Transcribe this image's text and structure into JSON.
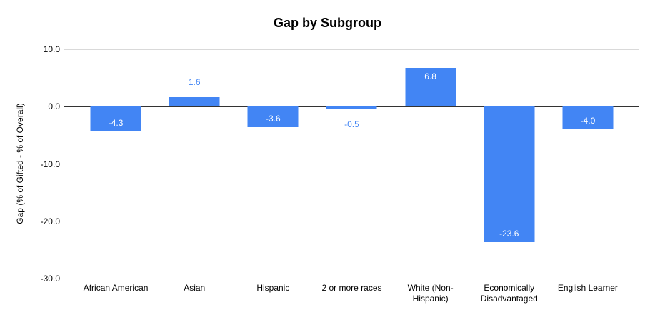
{
  "chart_data": {
    "type": "bar",
    "title": "Gap by Subgroup",
    "xlabel": "",
    "ylabel": "Gap (% of Gifted - % of Overall)",
    "categories": [
      "African American",
      "Asian",
      "Hispanic",
      "2 or more races",
      "White (Non-Hispanic)",
      "Economically Disadvantaged",
      "English Learner"
    ],
    "values": [
      -4.3,
      1.6,
      -3.6,
      -0.5,
      6.8,
      -23.6,
      -4.0
    ],
    "data_labels": [
      "-4.3",
      "1.6",
      "-3.6",
      "-0.5",
      "6.8",
      "-23.6",
      "-4.0"
    ],
    "ylim": [
      -30,
      10
    ],
    "y_ticks": [
      10,
      0,
      -10,
      -20,
      -30
    ],
    "y_tick_labels": [
      "10.0",
      "0.0",
      "-10.0",
      "-20.0",
      "-30.0"
    ],
    "grid": true,
    "legend": "none",
    "colors": {
      "bar": "#4285f4",
      "label_inside": "#ffffff",
      "label_outside": "#4285f4",
      "gridline": "#d9d9d9",
      "zero_line": "#333333",
      "axis_text": "#000000",
      "background": "#ffffff"
    }
  }
}
